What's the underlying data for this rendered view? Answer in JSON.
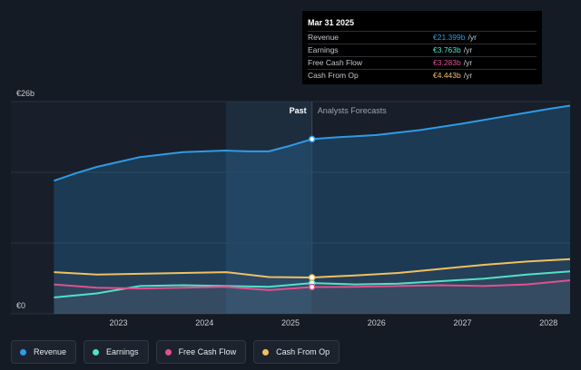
{
  "chart_data": {
    "type": "area",
    "currency": "€",
    "ylim": [
      0,
      26
    ],
    "y_ticks": [
      {
        "label": "€26b",
        "value": 26
      },
      {
        "label": "€0",
        "value": 0
      }
    ],
    "x_ticks": [
      {
        "label": "2023",
        "t": 2023.0
      },
      {
        "label": "2024",
        "t": 2024.0
      },
      {
        "label": "2025",
        "t": 2025.0
      },
      {
        "label": "2026",
        "t": 2026.0
      },
      {
        "label": "2027",
        "t": 2027.0
      },
      {
        "label": "2028",
        "t": 2028.0
      }
    ],
    "x_range": [
      2021.75,
      2028.25
    ],
    "divider_t": 2025.25,
    "past_highlight_start_t": 2024.25,
    "past_label": "Past",
    "forecast_label": "Analysts Forecasts",
    "series": [
      {
        "name": "Revenue",
        "color": "#2e9be6",
        "fill": true,
        "points": [
          [
            2022.25,
            16.3
          ],
          [
            2022.5,
            17.2
          ],
          [
            2022.75,
            18.0
          ],
          [
            2023.0,
            18.6
          ],
          [
            2023.25,
            19.2
          ],
          [
            2023.5,
            19.5
          ],
          [
            2023.75,
            19.8
          ],
          [
            2024.0,
            19.9
          ],
          [
            2024.25,
            20.0
          ],
          [
            2024.5,
            19.9
          ],
          [
            2024.75,
            19.9
          ],
          [
            2025.0,
            20.6
          ],
          [
            2025.25,
            21.399
          ],
          [
            2025.5,
            21.6
          ],
          [
            2026.0,
            21.9
          ],
          [
            2026.5,
            22.5
          ],
          [
            2027.0,
            23.3
          ],
          [
            2027.5,
            24.2
          ],
          [
            2028.0,
            25.1
          ],
          [
            2028.25,
            25.5
          ]
        ]
      },
      {
        "name": "Earnings",
        "color": "#52e0c8",
        "fill": false,
        "points": [
          [
            2022.25,
            2.0
          ],
          [
            2022.75,
            2.5
          ],
          [
            2023.25,
            3.4
          ],
          [
            2023.75,
            3.5
          ],
          [
            2024.25,
            3.4
          ],
          [
            2024.75,
            3.3
          ],
          [
            2025.25,
            3.763
          ],
          [
            2025.75,
            3.6
          ],
          [
            2026.25,
            3.7
          ],
          [
            2026.75,
            4.0
          ],
          [
            2027.25,
            4.3
          ],
          [
            2027.75,
            4.8
          ],
          [
            2028.25,
            5.2
          ]
        ]
      },
      {
        "name": "Free Cash Flow",
        "color": "#e0508f",
        "fill": false,
        "points": [
          [
            2022.25,
            3.6
          ],
          [
            2022.75,
            3.2
          ],
          [
            2023.25,
            3.1
          ],
          [
            2023.75,
            3.2
          ],
          [
            2024.25,
            3.3
          ],
          [
            2024.75,
            2.9
          ],
          [
            2025.25,
            3.283
          ],
          [
            2025.75,
            3.3
          ],
          [
            2026.25,
            3.4
          ],
          [
            2026.75,
            3.5
          ],
          [
            2027.25,
            3.4
          ],
          [
            2027.75,
            3.6
          ],
          [
            2028.25,
            4.1
          ]
        ]
      },
      {
        "name": "Cash From Op",
        "color": "#f0c060",
        "fill": false,
        "points": [
          [
            2022.25,
            5.1
          ],
          [
            2022.75,
            4.8
          ],
          [
            2023.25,
            4.9
          ],
          [
            2023.75,
            5.0
          ],
          [
            2024.25,
            5.1
          ],
          [
            2024.75,
            4.5
          ],
          [
            2025.25,
            4.443
          ],
          [
            2025.75,
            4.7
          ],
          [
            2026.25,
            5.0
          ],
          [
            2026.75,
            5.5
          ],
          [
            2027.25,
            6.0
          ],
          [
            2027.75,
            6.4
          ],
          [
            2028.25,
            6.7
          ]
        ]
      }
    ]
  },
  "tooltip": {
    "title": "Mar 31 2025",
    "rows": [
      {
        "label": "Revenue",
        "value": "€21.399b",
        "unit": "/yr",
        "color": "#2e9be6"
      },
      {
        "label": "Earnings",
        "value": "€3.763b",
        "unit": "/yr",
        "color": "#52e0c8"
      },
      {
        "label": "Free Cash Flow",
        "value": "€3.283b",
        "unit": "/yr",
        "color": "#e0508f"
      },
      {
        "label": "Cash From Op",
        "value": "€4.443b",
        "unit": "/yr",
        "color": "#f0c060"
      }
    ]
  },
  "legend": [
    {
      "label": "Revenue",
      "color": "#2e9be6"
    },
    {
      "label": "Earnings",
      "color": "#52e0c8"
    },
    {
      "label": "Free Cash Flow",
      "color": "#e0508f"
    },
    {
      "label": "Cash From Op",
      "color": "#f0c060"
    }
  ]
}
